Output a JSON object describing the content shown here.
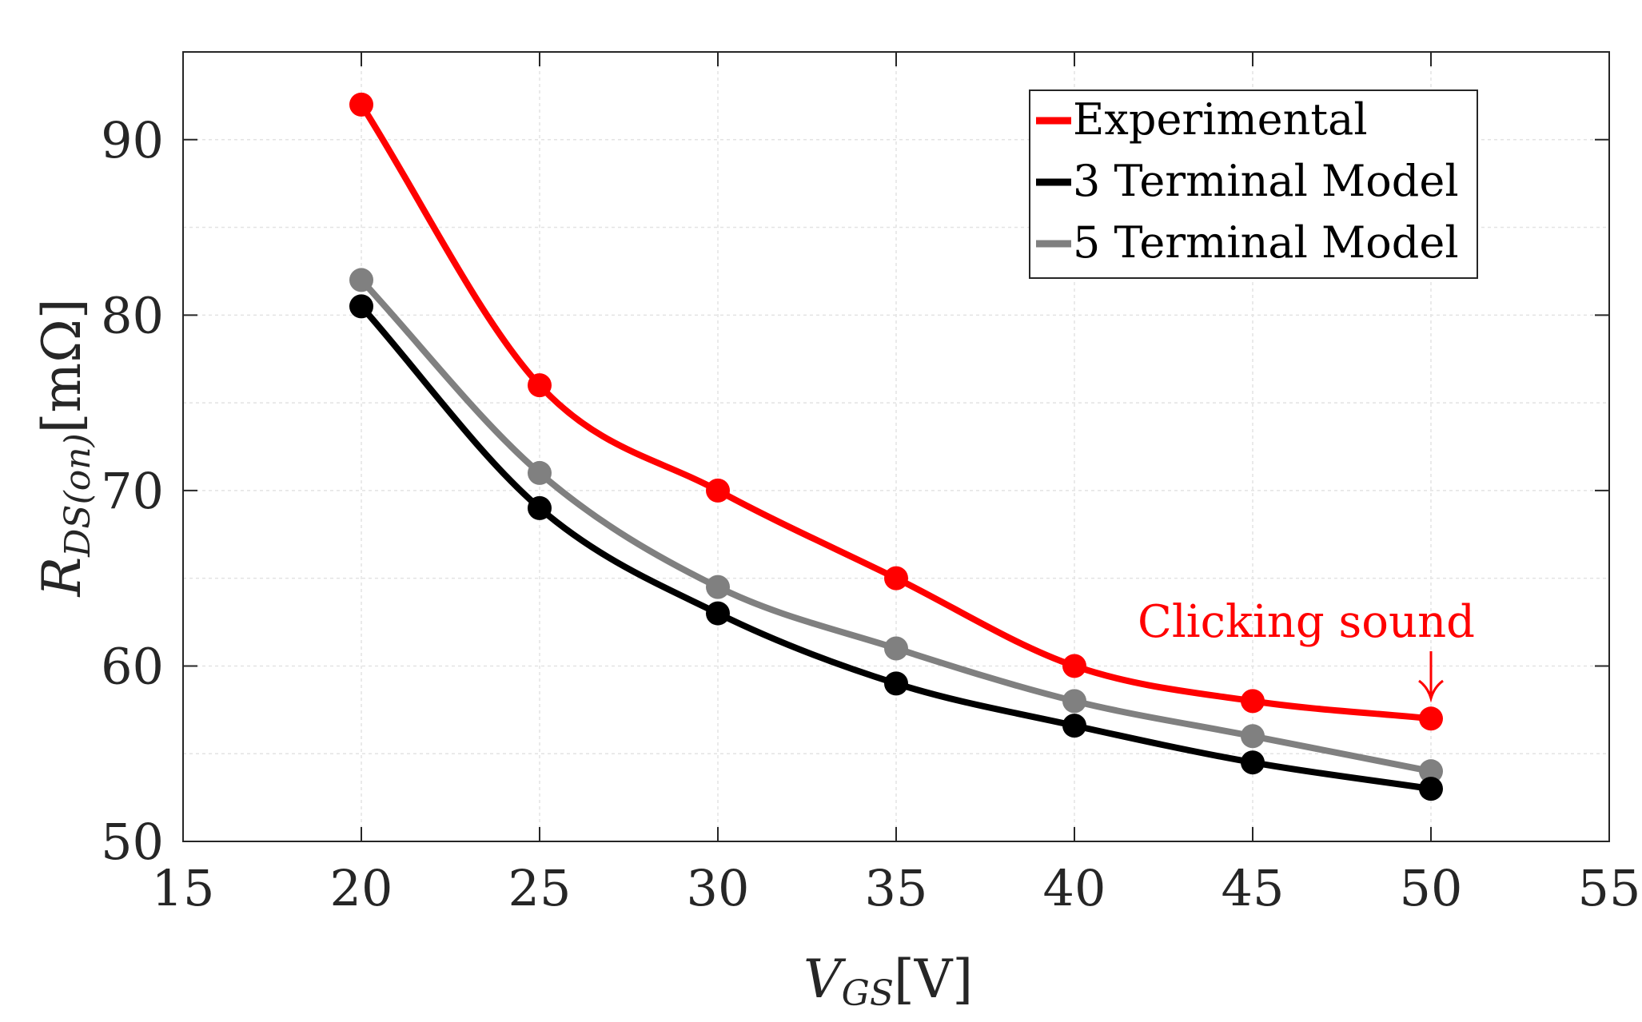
{
  "chart_data": {
    "type": "line",
    "title": "",
    "xlabel": {
      "main": "V",
      "sub": "GS",
      "unit": "[V]"
    },
    "ylabel": {
      "main": "R",
      "sub": "DS(on)",
      "unit": "[mΩ]"
    },
    "xlim": [
      15,
      55
    ],
    "ylim": [
      50,
      95
    ],
    "xticks": [
      15,
      20,
      25,
      30,
      35,
      40,
      45,
      50,
      55
    ],
    "yticks": [
      50,
      60,
      70,
      80,
      90
    ],
    "grid": true,
    "legend_position": "top-right",
    "x": [
      20,
      25,
      30,
      35,
      40,
      45,
      50
    ],
    "series": [
      {
        "name": "Experimental",
        "color": "#ff0000",
        "values": [
          92,
          76,
          70,
          65,
          60,
          58,
          57
        ]
      },
      {
        "name": "3 Terminal Model",
        "color": "#000000",
        "values": [
          80.5,
          69,
          63,
          59,
          56.6,
          54.5,
          53
        ]
      },
      {
        "name": "5 Terminal Model",
        "color": "#808080",
        "values": [
          82,
          71,
          64.5,
          61,
          58,
          56,
          54
        ]
      }
    ],
    "annotation": {
      "text": "Clicking sound",
      "x": 50,
      "y": 57,
      "color": "#ff0000"
    }
  }
}
